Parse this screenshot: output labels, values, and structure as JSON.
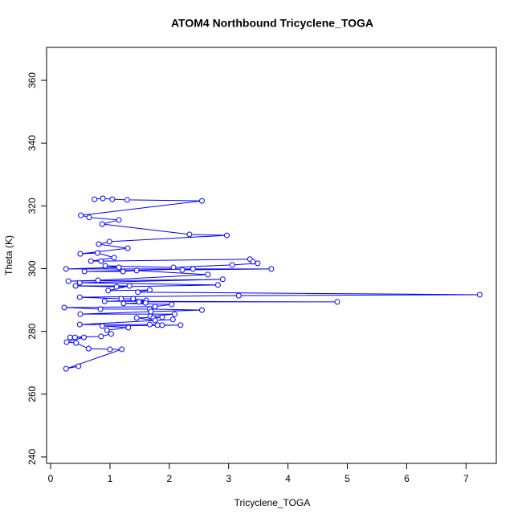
{
  "chart_data": {
    "type": "line",
    "title": "ATOM4 Northbound Tricyclene_TOGA",
    "x_label": "Tricyclene_TOGA",
    "y_label": "Theta (K)",
    "xlim": [
      -0.068,
      7.51
    ],
    "ylim": [
      237.95,
      370.5
    ],
    "xticks": [
      0,
      1,
      2,
      3,
      4,
      5,
      6,
      7
    ],
    "yticks": [
      240,
      260,
      280,
      300,
      320,
      340,
      360
    ],
    "markers": true,
    "series": [
      {
        "color": "#0000ff",
        "x": [
          0.74,
          0.88,
          1.04,
          1.29,
          2.55,
          0.51,
          0.65,
          1.15,
          0.87,
          2.34,
          2.97,
          0.99,
          0.81,
          1.3,
          0.5,
          0.79,
          1.07,
          0.68,
          0.85,
          3.36,
          3.41,
          3.49,
          3.06,
          2.07,
          0.92,
          1.15,
          0.26,
          3.72,
          2.22,
          2.4,
          0.57,
          1.22,
          1.45,
          2.65,
          0.8,
          0.3,
          2.9,
          0.49,
          2.82,
          1.11,
          0.42,
          1.33,
          0.97,
          1.67,
          1.47,
          7.23,
          3.17,
          0.49,
          1.19,
          1.39,
          1.61,
          0.91,
          4.83,
          1.49,
          1.6,
          1.23,
          2.04,
          1.76,
          0.23,
          0.84,
          1.67,
          2.55,
          1.69,
          0.5,
          2.09,
          1.68,
          1.73,
          1.88,
          1.45,
          1.76,
          2.06,
          0.49,
          1.67,
          1.8,
          1.88,
          2.19,
          0.87,
          1.31,
          0.95,
          1.02,
          0.85,
          0.33,
          0.41,
          0.56,
          0.27,
          0.43,
          0.64,
          1.0,
          1.2,
          0.26,
          0.47
        ],
        "values": [
          322.1,
          322.4,
          322.1,
          321.9,
          321.6,
          317.0,
          316.3,
          315.5,
          314.2,
          310.9,
          310.6,
          308.6,
          307.8,
          306.5,
          304.7,
          305.0,
          303.5,
          302.4,
          302.4,
          303.0,
          302.2,
          301.7,
          301.2,
          300.4,
          300.9,
          300.4,
          299.9,
          299.9,
          299.6,
          299.9,
          299.1,
          299.1,
          299.4,
          298.1,
          296.3,
          296.0,
          296.6,
          295.5,
          294.8,
          294.2,
          294.5,
          294.5,
          293.0,
          293.2,
          292.5,
          291.7,
          291.4,
          290.9,
          290.4,
          290.4,
          289.9,
          289.6,
          289.4,
          289.4,
          289.1,
          288.9,
          288.6,
          287.9,
          287.6,
          287.1,
          287.1,
          286.8,
          286.3,
          285.5,
          285.5,
          284.8,
          284.3,
          284.5,
          284.3,
          283.5,
          283.8,
          282.2,
          282.2,
          282.0,
          282.0,
          282.0,
          281.7,
          281.2,
          280.4,
          279.2,
          278.4,
          278.1,
          278.1,
          278.1,
          276.6,
          276.3,
          274.5,
          274.3,
          274.3,
          268.1,
          268.9
        ]
      }
    ]
  }
}
